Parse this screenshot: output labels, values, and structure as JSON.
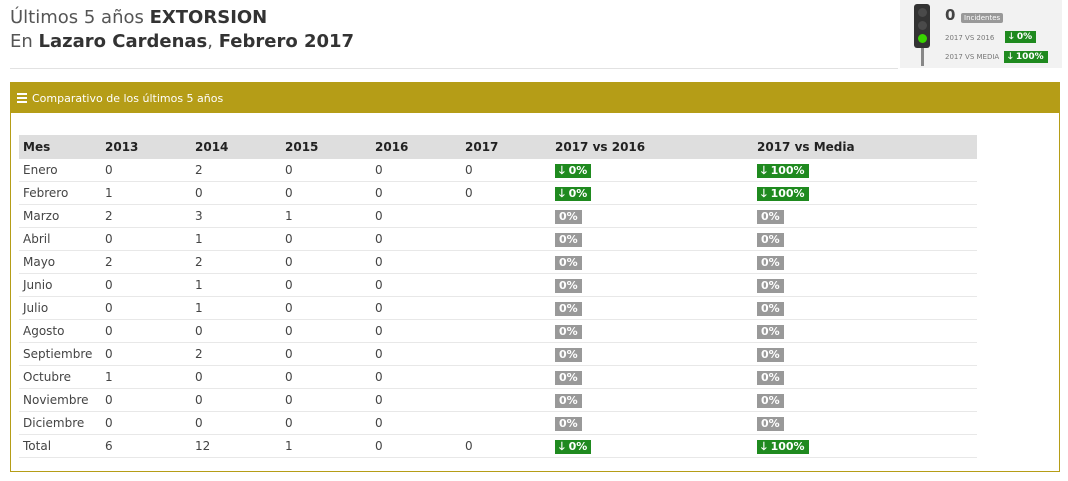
{
  "header": {
    "line1_prefix": "Últimos 5 años ",
    "line1_strong": "EXTORSION",
    "line2_prefix": "En ",
    "line2_place": "Lazaro Cardenas",
    "line2_sep": ", ",
    "line2_period": "Febrero 2017"
  },
  "semaforo": {
    "active_light": "green",
    "count": "0",
    "count_label": "Incidentes",
    "vs_prev_label": "2017 VS 2016",
    "vs_prev_value": "0%",
    "vs_media_label": "2017 VS MEDIA",
    "vs_media_value": "100%"
  },
  "panel": {
    "title": "Comparativo de los últimos 5 años"
  },
  "table": {
    "headers": [
      "Mes",
      "2013",
      "2014",
      "2015",
      "2016",
      "2017",
      "2017 vs 2016",
      "2017 vs Media"
    ],
    "rows": [
      {
        "mes": "Enero",
        "y2013": "0",
        "y2014": "2",
        "y2015": "0",
        "y2016": "0",
        "y2017": "0",
        "vs2016": "0%",
        "vsMedia": "100%",
        "style": "green"
      },
      {
        "mes": "Febrero",
        "y2013": "1",
        "y2014": "0",
        "y2015": "0",
        "y2016": "0",
        "y2017": "0",
        "vs2016": "0%",
        "vsMedia": "100%",
        "style": "green"
      },
      {
        "mes": "Marzo",
        "y2013": "2",
        "y2014": "3",
        "y2015": "1",
        "y2016": "0",
        "y2017": "",
        "vs2016": "0%",
        "vsMedia": "0%",
        "style": "gray"
      },
      {
        "mes": "Abril",
        "y2013": "0",
        "y2014": "1",
        "y2015": "0",
        "y2016": "0",
        "y2017": "",
        "vs2016": "0%",
        "vsMedia": "0%",
        "style": "gray"
      },
      {
        "mes": "Mayo",
        "y2013": "2",
        "y2014": "2",
        "y2015": "0",
        "y2016": "0",
        "y2017": "",
        "vs2016": "0%",
        "vsMedia": "0%",
        "style": "gray"
      },
      {
        "mes": "Junio",
        "y2013": "0",
        "y2014": "1",
        "y2015": "0",
        "y2016": "0",
        "y2017": "",
        "vs2016": "0%",
        "vsMedia": "0%",
        "style": "gray"
      },
      {
        "mes": "Julio",
        "y2013": "0",
        "y2014": "1",
        "y2015": "0",
        "y2016": "0",
        "y2017": "",
        "vs2016": "0%",
        "vsMedia": "0%",
        "style": "gray"
      },
      {
        "mes": "Agosto",
        "y2013": "0",
        "y2014": "0",
        "y2015": "0",
        "y2016": "0",
        "y2017": "",
        "vs2016": "0%",
        "vsMedia": "0%",
        "style": "gray"
      },
      {
        "mes": "Septiembre",
        "y2013": "0",
        "y2014": "2",
        "y2015": "0",
        "y2016": "0",
        "y2017": "",
        "vs2016": "0%",
        "vsMedia": "0%",
        "style": "gray"
      },
      {
        "mes": "Octubre",
        "y2013": "1",
        "y2014": "0",
        "y2015": "0",
        "y2016": "0",
        "y2017": "",
        "vs2016": "0%",
        "vsMedia": "0%",
        "style": "gray"
      },
      {
        "mes": "Noviembre",
        "y2013": "0",
        "y2014": "0",
        "y2015": "0",
        "y2016": "0",
        "y2017": "",
        "vs2016": "0%",
        "vsMedia": "0%",
        "style": "gray"
      },
      {
        "mes": "Diciembre",
        "y2013": "0",
        "y2014": "0",
        "y2015": "0",
        "y2016": "0",
        "y2017": "",
        "vs2016": "0%",
        "vsMedia": "0%",
        "style": "gray"
      },
      {
        "mes": "Total",
        "y2013": "6",
        "y2014": "12",
        "y2015": "1",
        "y2016": "0",
        "y2017": "0",
        "vs2016": "0%",
        "vsMedia": "100%",
        "style": "green"
      }
    ]
  },
  "colors": {
    "accent": "#b59d17",
    "good": "#1f8a1f",
    "neutral": "#999999"
  },
  "icons": {
    "menu": "bars-icon",
    "down": "arrow-down-icon"
  }
}
